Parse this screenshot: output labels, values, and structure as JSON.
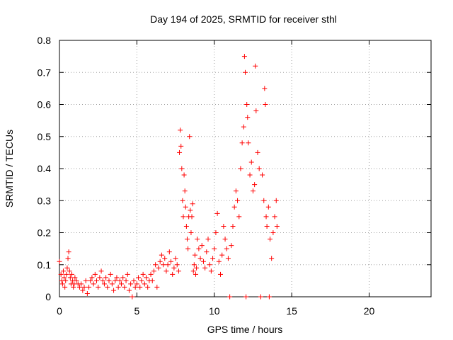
{
  "chart_data": {
    "type": "scatter",
    "title": "Day 194 of 2025, SRMTID for receiver sthl",
    "xlabel": "GPS time / hours",
    "ylabel": "SRMTID / TECUs",
    "xlim": [
      0,
      24
    ],
    "ylim": [
      0,
      0.8
    ],
    "xticks": [
      0,
      5,
      10,
      15,
      20
    ],
    "yticks": [
      0,
      0.1,
      0.2,
      0.3,
      0.4,
      0.5,
      0.6,
      0.7,
      0.8
    ],
    "xtick_labels": [
      "0",
      "5",
      "10",
      "15",
      "20"
    ],
    "ytick_labels": [
      "0",
      "0.1",
      "0.2",
      "0.3",
      "0.4",
      "0.5",
      "0.6",
      "0.7",
      "0.8"
    ],
    "grid": true,
    "marker": "+",
    "series": [
      {
        "name": "SRMTID",
        "color": "#ff0000",
        "points": [
          [
            0.0,
            0.11
          ],
          [
            0.1,
            0.07
          ],
          [
            0.15,
            0.05
          ],
          [
            0.2,
            0.04
          ],
          [
            0.25,
            0.08
          ],
          [
            0.3,
            0.06
          ],
          [
            0.35,
            0.03
          ],
          [
            0.4,
            0.05
          ],
          [
            0.45,
            0.07
          ],
          [
            0.5,
            0.09
          ],
          [
            0.55,
            0.12
          ],
          [
            0.6,
            0.14
          ],
          [
            0.65,
            0.08
          ],
          [
            0.7,
            0.06
          ],
          [
            0.75,
            0.04
          ],
          [
            0.8,
            0.07
          ],
          [
            0.85,
            0.05
          ],
          [
            0.9,
            0.03
          ],
          [
            0.95,
            0.04
          ],
          [
            1.0,
            0.06
          ],
          [
            1.1,
            0.05
          ],
          [
            1.2,
            0.04
          ],
          [
            1.3,
            0.03
          ],
          [
            1.4,
            0.04
          ],
          [
            1.5,
            0.02
          ],
          [
            1.6,
            0.03
          ],
          [
            1.7,
            0.05
          ],
          [
            1.8,
            0.01
          ],
          [
            1.9,
            0.03
          ],
          [
            2.0,
            0.05
          ],
          [
            2.1,
            0.06
          ],
          [
            2.2,
            0.04
          ],
          [
            2.3,
            0.07
          ],
          [
            2.4,
            0.05
          ],
          [
            2.5,
            0.03
          ],
          [
            2.6,
            0.06
          ],
          [
            2.7,
            0.08
          ],
          [
            2.8,
            0.05
          ],
          [
            2.9,
            0.04
          ],
          [
            3.0,
            0.06
          ],
          [
            3.1,
            0.03
          ],
          [
            3.2,
            0.05
          ],
          [
            3.3,
            0.07
          ],
          [
            3.4,
            0.04
          ],
          [
            3.5,
            0.02
          ],
          [
            3.6,
            0.05
          ],
          [
            3.7,
            0.06
          ],
          [
            3.8,
            0.03
          ],
          [
            3.9,
            0.05
          ],
          [
            4.0,
            0.04
          ],
          [
            4.1,
            0.06
          ],
          [
            4.2,
            0.03
          ],
          [
            4.3,
            0.05
          ],
          [
            4.4,
            0.07
          ],
          [
            4.5,
            0.02
          ],
          [
            4.6,
            0.04
          ],
          [
            4.7,
            0.0
          ],
          [
            4.8,
            0.05
          ],
          [
            4.9,
            0.03
          ],
          [
            5.0,
            0.04
          ],
          [
            5.1,
            0.06
          ],
          [
            5.2,
            0.03
          ],
          [
            5.3,
            0.05
          ],
          [
            5.4,
            0.07
          ],
          [
            5.5,
            0.04
          ],
          [
            5.6,
            0.06
          ],
          [
            5.7,
            0.03
          ],
          [
            5.8,
            0.05
          ],
          [
            5.9,
            0.07
          ],
          [
            6.0,
            0.05
          ],
          [
            6.1,
            0.08
          ],
          [
            6.2,
            0.1
          ],
          [
            6.3,
            0.03
          ],
          [
            6.4,
            0.09
          ],
          [
            6.5,
            0.11
          ],
          [
            6.6,
            0.13
          ],
          [
            6.7,
            0.1
          ],
          [
            6.8,
            0.12
          ],
          [
            6.9,
            0.08
          ],
          [
            7.0,
            0.1
          ],
          [
            7.1,
            0.14
          ],
          [
            7.2,
            0.11
          ],
          [
            7.3,
            0.07
          ],
          [
            7.4,
            0.09
          ],
          [
            7.5,
            0.12
          ],
          [
            7.6,
            0.1
          ],
          [
            7.7,
            0.08
          ],
          [
            7.75,
            0.45
          ],
          [
            7.8,
            0.52
          ],
          [
            7.85,
            0.47
          ],
          [
            7.9,
            0.4
          ],
          [
            7.95,
            0.3
          ],
          [
            8.0,
            0.25
          ],
          [
            8.05,
            0.38
          ],
          [
            8.1,
            0.33
          ],
          [
            8.15,
            0.28
          ],
          [
            8.2,
            0.22
          ],
          [
            8.25,
            0.18
          ],
          [
            8.3,
            0.15
          ],
          [
            8.35,
            0.25
          ],
          [
            8.4,
            0.5
          ],
          [
            8.45,
            0.27
          ],
          [
            8.5,
            0.2
          ],
          [
            8.55,
            0.25
          ],
          [
            8.6,
            0.29
          ],
          [
            8.65,
            0.08
          ],
          [
            8.7,
            0.1
          ],
          [
            8.75,
            0.13
          ],
          [
            8.8,
            0.07
          ],
          [
            8.85,
            0.09
          ],
          [
            8.9,
            0.18
          ],
          [
            9.0,
            0.15
          ],
          [
            9.1,
            0.12
          ],
          [
            9.2,
            0.16
          ],
          [
            9.3,
            0.11
          ],
          [
            9.4,
            0.09
          ],
          [
            9.5,
            0.14
          ],
          [
            9.6,
            0.18
          ],
          [
            9.7,
            0.1
          ],
          [
            9.8,
            0.08
          ],
          [
            9.9,
            0.12
          ],
          [
            10.0,
            0.15
          ],
          [
            10.1,
            0.2
          ],
          [
            10.2,
            0.26
          ],
          [
            10.3,
            0.11
          ],
          [
            10.4,
            0.07
          ],
          [
            10.5,
            0.13
          ],
          [
            10.6,
            0.22
          ],
          [
            10.7,
            0.18
          ],
          [
            10.8,
            0.15
          ],
          [
            10.9,
            0.12
          ],
          [
            11.0,
            0.0
          ],
          [
            11.1,
            0.16
          ],
          [
            11.2,
            0.22
          ],
          [
            11.3,
            0.28
          ],
          [
            11.4,
            0.33
          ],
          [
            11.5,
            0.3
          ],
          [
            11.6,
            0.25
          ],
          [
            11.7,
            0.4
          ],
          [
            11.8,
            0.48
          ],
          [
            11.9,
            0.53
          ],
          [
            11.95,
            0.75
          ],
          [
            12.0,
            0.7
          ],
          [
            12.05,
            0.0
          ],
          [
            12.1,
            0.6
          ],
          [
            12.15,
            0.56
          ],
          [
            12.2,
            0.48
          ],
          [
            12.3,
            0.38
          ],
          [
            12.4,
            0.42
          ],
          [
            12.5,
            0.33
          ],
          [
            12.6,
            0.35
          ],
          [
            12.65,
            0.72
          ],
          [
            12.7,
            0.58
          ],
          [
            12.8,
            0.45
          ],
          [
            12.9,
            0.4
          ],
          [
            13.0,
            0.0
          ],
          [
            13.1,
            0.38
          ],
          [
            13.2,
            0.3
          ],
          [
            13.25,
            0.65
          ],
          [
            13.3,
            0.6
          ],
          [
            13.35,
            0.25
          ],
          [
            13.4,
            0.22
          ],
          [
            13.5,
            0.28
          ],
          [
            13.55,
            0.0
          ],
          [
            13.6,
            0.18
          ],
          [
            13.7,
            0.12
          ],
          [
            13.8,
            0.2
          ],
          [
            13.9,
            0.25
          ],
          [
            14.0,
            0.3
          ],
          [
            14.05,
            0.22
          ]
        ]
      }
    ]
  }
}
